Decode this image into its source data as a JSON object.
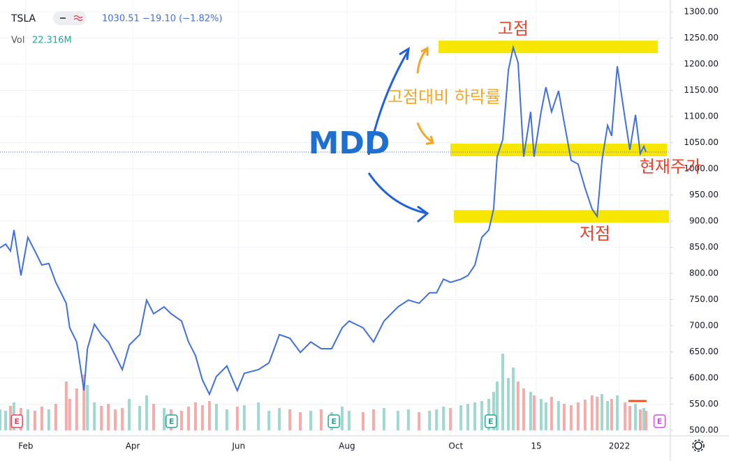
{
  "chart_data": {
    "type": "line",
    "symbol": "TSLA",
    "quote": "1030.51 −19.10 (−1.82%)",
    "volume_label": "Vol",
    "volume_value": "22.316M",
    "xlim": [
      0,
      250
    ],
    "xticks": [
      {
        "value": 9.6,
        "label": "Feb"
      },
      {
        "value": 49.5,
        "label": "Apr"
      },
      {
        "value": 89,
        "label": "Jun"
      },
      {
        "value": 129.4,
        "label": "Aug"
      },
      {
        "value": 170,
        "label": "Oct"
      },
      {
        "value": 200,
        "label": "15"
      },
      {
        "value": 231,
        "label": "2022"
      }
    ],
    "ylim": [
      500,
      1300
    ],
    "yticks": [
      {
        "value": 500,
        "label": "500.00"
      },
      {
        "value": 550,
        "label": "550.00"
      },
      {
        "value": 600,
        "label": "600.00"
      },
      {
        "value": 650,
        "label": "650.00"
      },
      {
        "value": 700,
        "label": "700.00"
      },
      {
        "value": 750,
        "label": "750.00"
      },
      {
        "value": 800,
        "label": "800.00"
      },
      {
        "value": 850,
        "label": "850.00"
      },
      {
        "value": 900,
        "label": "900.00"
      },
      {
        "value": 950,
        "label": "950.00"
      },
      {
        "value": 1000,
        "label": "1000.00"
      },
      {
        "value": 1050,
        "label": "1050.00"
      },
      {
        "value": 1100,
        "label": "1100.00"
      },
      {
        "value": 1150,
        "label": "1150.00"
      },
      {
        "value": 1200,
        "label": "1200.00"
      },
      {
        "value": 1250,
        "label": "1250.00"
      },
      {
        "value": 1300,
        "label": "1300.00"
      }
    ],
    "x": [
      0,
      2.1,
      3.9,
      5.2,
      7.8,
      10.4,
      13,
      15.6,
      18.2,
      20.8,
      24.7,
      26,
      28.6,
      31.3,
      32.6,
      35.2,
      37.8,
      40.4,
      43,
      45.6,
      48.2,
      52.1,
      54.7,
      57.3,
      61.2,
      63.8,
      67.7,
      70.3,
      72.9,
      75.5,
      78.1,
      80.7,
      84.6,
      88.5,
      91.1,
      96.4,
      100.3,
      104.2,
      108.1,
      112,
      115.9,
      119.8,
      123.7,
      127.6,
      130.2,
      135.4,
      139.3,
      143.2,
      148.4,
      152.3,
      156.3,
      160.2,
      162.8,
      165.4,
      168,
      171.9,
      174.5,
      177.1,
      179.7,
      182.3,
      184.1,
      185.4,
      187.5,
      189.6,
      191.4,
      193.2,
      195.3,
      197.9,
      199.2,
      201.8,
      203.6,
      205.7,
      208.3,
      210.4,
      213,
      215.6,
      218.2,
      220.8,
      222.7,
      224.5,
      226.6,
      228.1,
      230.2,
      233.1,
      234.9,
      237,
      238.8,
      240.1,
      240.9
    ],
    "series": [
      {
        "name": "TSLA",
        "color": "#3f6fe0",
        "values": [
          849,
          856,
          843,
          883,
          796,
          869,
          843,
          816,
          819,
          783,
          743,
          696,
          669,
          576,
          656,
          703,
          683,
          669,
          643,
          616,
          663,
          683,
          749,
          723,
          736,
          723,
          709,
          669,
          643,
          596,
          569,
          603,
          623,
          576,
          609,
          616,
          629,
          683,
          676,
          649,
          669,
          656,
          656,
          696,
          709,
          696,
          669,
          709,
          736,
          749,
          743,
          763,
          763,
          789,
          783,
          789,
          796,
          816,
          869,
          883,
          923,
          1023,
          1056,
          1189,
          1232,
          1203,
          1023,
          1109,
          1023,
          1109,
          1156,
          1109,
          1149,
          1089,
          1016,
          1009,
          963,
          923,
          909,
          1016,
          1083,
          1063,
          1196,
          1096,
          1036,
          1103,
          1029,
          1043,
          1032
        ]
      },
      {
        "name": "Vol",
        "up_color": "#9fd8d0",
        "down_color": "#f6abab",
        "values": [
          30,
          28,
          35,
          40,
          32,
          30,
          28,
          34,
          30,
          38,
          70,
          45,
          60,
          80,
          65,
          40,
          35,
          38,
          30,
          32,
          45,
          35,
          50,
          38,
          32,
          30,
          28,
          34,
          40,
          36,
          42,
          38,
          30,
          34,
          36,
          40,
          28,
          32,
          30,
          26,
          28,
          30,
          26,
          34,
          28,
          26,
          30,
          32,
          28,
          30,
          26,
          28,
          30,
          34,
          32,
          36,
          38,
          40,
          42,
          45,
          55,
          70,
          110,
          75,
          90,
          70,
          60,
          55,
          50,
          45,
          40,
          48,
          42,
          38,
          36,
          40,
          44,
          50,
          48,
          52,
          42,
          45,
          50,
          40,
          35,
          38,
          30,
          32,
          28
        ]
      }
    ],
    "events": [
      {
        "label": "E",
        "x": 6.3,
        "color": "#e0475b"
      },
      {
        "label": "E",
        "x": 64,
        "color": "#26a69a"
      },
      {
        "label": "E",
        "x": 124.5,
        "color": "#26a69a"
      },
      {
        "label": "E",
        "x": 183,
        "color": "#26a69a"
      },
      {
        "label": "E",
        "x": 246,
        "color": "#d04ee0"
      }
    ],
    "annotations": [
      {
        "text": "고점",
        "value": 1233
      },
      {
        "text": "현재주가",
        "value": 1036
      },
      {
        "text": "저점",
        "value": 909
      },
      {
        "text": "MDD"
      },
      {
        "text": "고점대비 하락률"
      }
    ],
    "band_color": "#f7e600",
    "grid": true
  }
}
